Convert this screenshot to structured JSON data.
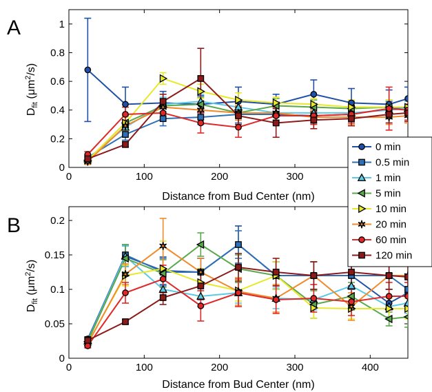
{
  "chart_data": [
    {
      "type": "line",
      "panel_label": "A",
      "xlabel": "Distance from Bud Center (nm)",
      "ylabel_main": "D",
      "ylabel_sub": "fit",
      "ylabel_unit_pre": "(μm",
      "ylabel_unit_sup": "2",
      "ylabel_unit_post": "/s)",
      "xlim": [
        0,
        450
      ],
      "ylim": [
        0,
        1.1
      ],
      "xticks": [
        0,
        100,
        200,
        300
      ],
      "yticks": [
        0,
        0.2,
        0.4,
        0.6,
        0.8,
        1
      ],
      "x": [
        25,
        75,
        125,
        175,
        225,
        275,
        325,
        375,
        425,
        450
      ],
      "series": [
        {
          "name": "0 min",
          "color": "#1f4fa8",
          "marker": "circle",
          "values": [
            0.68,
            0.44,
            0.45,
            0.44,
            0.46,
            0.44,
            0.51,
            0.45,
            0.44,
            0.48
          ],
          "errors": [
            0.36,
            0.12,
            0.08,
            0.06,
            0.1,
            0.07,
            0.1,
            0.1,
            0.1,
            0.08
          ]
        },
        {
          "name": "0.5 min",
          "color": "#2e6fb5",
          "marker": "square",
          "values": [
            0.07,
            0.23,
            0.34,
            0.35,
            0.37,
            0.37,
            0.36,
            0.37,
            0.41,
            0.42
          ],
          "errors": [
            0.02,
            0.04,
            0.05,
            0.05,
            0.06,
            0.05,
            0.05,
            0.05,
            0.05,
            0.05
          ]
        },
        {
          "name": "1 min",
          "color": "#5bc8e8",
          "marker": "triangle-up",
          "values": [
            0.06,
            0.28,
            0.44,
            0.46,
            0.42,
            0.38,
            0.38,
            0.38,
            0.4,
            0.41
          ],
          "errors": [
            0.02,
            0.05,
            0.05,
            0.05,
            0.05,
            0.05,
            0.05,
            0.05,
            0.05,
            0.05
          ]
        },
        {
          "name": "5 min",
          "color": "#5aa84a",
          "marker": "triangle-left",
          "values": [
            0.05,
            0.31,
            0.43,
            0.44,
            0.38,
            0.43,
            0.42,
            0.41,
            0.42,
            0.42
          ],
          "errors": [
            0.02,
            0.05,
            0.05,
            0.05,
            0.05,
            0.05,
            0.05,
            0.05,
            0.05,
            0.05
          ]
        },
        {
          "name": "10 min",
          "color": "#e8e82a",
          "marker": "triangle-right",
          "values": [
            0.05,
            0.31,
            0.62,
            0.53,
            0.47,
            0.45,
            0.44,
            0.42,
            0.42,
            0.42
          ],
          "errors": [
            0.02,
            0.04,
            0.04,
            0.05,
            0.05,
            0.04,
            0.04,
            0.05,
            0.05,
            0.05
          ]
        },
        {
          "name": "20 min",
          "color": "#f08a2a",
          "marker": "star",
          "values": [
            0.04,
            0.29,
            0.42,
            0.4,
            0.38,
            0.38,
            0.35,
            0.35,
            0.35,
            0.36
          ],
          "errors": [
            0.02,
            0.04,
            0.05,
            0.05,
            0.05,
            0.05,
            0.05,
            0.05,
            0.05,
            0.05
          ]
        },
        {
          "name": "60 min",
          "color": "#e02828",
          "marker": "circle",
          "values": [
            0.09,
            0.37,
            0.38,
            0.31,
            0.28,
            0.36,
            0.36,
            0.37,
            0.41,
            0.4
          ],
          "errors": [
            0.02,
            0.05,
            0.05,
            0.07,
            0.07,
            0.06,
            0.06,
            0.06,
            0.15,
            0.07
          ]
        },
        {
          "name": "120 min",
          "color": "#8c1a1a",
          "marker": "square",
          "values": [
            0.06,
            0.16,
            0.46,
            0.62,
            0.36,
            0.31,
            0.33,
            0.34,
            0.37,
            0.38
          ],
          "errors": [
            0.02,
            0.02,
            0.05,
            0.21,
            0.06,
            0.1,
            0.06,
            0.05,
            0.06,
            0.06
          ]
        }
      ],
      "legend": "right"
    },
    {
      "type": "line",
      "panel_label": "B",
      "xlabel": "Distance from Bud Center (nm)",
      "ylabel_main": "D",
      "ylabel_sub": "fit",
      "ylabel_unit_pre": "(μm",
      "ylabel_unit_sup": "2",
      "ylabel_unit_post": "/s)",
      "xlim": [
        0,
        450
      ],
      "ylim": [
        0,
        0.22
      ],
      "xticks": [
        0,
        100,
        200,
        300,
        400
      ],
      "yticks": [
        0,
        0.05,
        0.1,
        0.15,
        0.2
      ],
      "x": [
        25,
        75,
        125,
        175,
        225,
        275,
        325,
        375,
        425,
        450
      ],
      "series": [
        {
          "name": "0 min",
          "color": "#1f4fa8",
          "marker": "circle",
          "values": [
            0.028,
            0.148,
            0.127,
            0.125,
            0.165,
            0.12,
            0.12,
            0.12,
            0.08,
            0.095
          ],
          "errors": [
            0.003,
            0.015,
            0.02,
            0.02,
            0.027,
            0.02,
            0.02,
            0.02,
            0.02,
            0.02
          ]
        },
        {
          "name": "0.5 min",
          "color": "#2e6fb5",
          "marker": "square",
          "values": [
            0.027,
            0.15,
            0.125,
            0.125,
            0.165,
            0.12,
            0.12,
            0.12,
            0.12,
            0.1
          ],
          "errors": [
            0.003,
            0.015,
            0.02,
            0.02,
            0.02,
            0.02,
            0.02,
            0.02,
            0.02,
            0.02
          ]
        },
        {
          "name": "1 min",
          "color": "#5bc8e8",
          "marker": "triangle-up",
          "values": [
            0.025,
            0.148,
            0.1,
            0.09,
            0.095,
            0.087,
            0.085,
            0.105,
            0.075,
            0.08
          ],
          "errors": [
            0.003,
            0.015,
            0.015,
            0.015,
            0.015,
            0.015,
            0.015,
            0.015,
            0.015,
            0.015
          ]
        },
        {
          "name": "5 min",
          "color": "#5aa84a",
          "marker": "triangle-left",
          "values": [
            0.024,
            0.145,
            0.123,
            0.165,
            0.13,
            0.12,
            0.078,
            0.09,
            0.057,
            0.06
          ],
          "errors": [
            0.003,
            0.02,
            0.02,
            0.017,
            0.02,
            0.02,
            0.02,
            0.02,
            0.01,
            0.015
          ]
        },
        {
          "name": "10 min",
          "color": "#e8e82a",
          "marker": "triangle-right",
          "values": [
            0.022,
            0.12,
            0.13,
            0.11,
            0.098,
            0.12,
            0.073,
            0.072,
            0.072,
            0.072
          ],
          "errors": [
            0.003,
            0.015,
            0.04,
            0.02,
            0.015,
            0.02,
            0.015,
            0.015,
            0.015,
            0.015
          ]
        },
        {
          "name": "20 min",
          "color": "#f08a2a",
          "marker": "star",
          "values": [
            0.021,
            0.122,
            0.163,
            0.125,
            0.097,
            0.087,
            0.12,
            0.075,
            0.12,
            0.12
          ],
          "errors": [
            0.003,
            0.015,
            0.04,
            0.02,
            0.02,
            0.02,
            0.02,
            0.02,
            0.02,
            0.02
          ]
        },
        {
          "name": "60 min",
          "color": "#e02828",
          "marker": "circle",
          "values": [
            0.018,
            0.095,
            0.115,
            0.076,
            0.095,
            0.085,
            0.087,
            0.082,
            0.09,
            0.09
          ],
          "errors": [
            0.003,
            0.015,
            0.02,
            0.022,
            0.02,
            0.02,
            0.02,
            0.02,
            0.02,
            0.02
          ]
        },
        {
          "name": "120 min",
          "color": "#8c1a1a",
          "marker": "square",
          "values": [
            0.026,
            0.053,
            0.088,
            0.105,
            0.132,
            0.125,
            0.12,
            0.125,
            0.12,
            0.118
          ],
          "errors": [
            0.003,
            0.003,
            0.01,
            0.02,
            0.02,
            0.02,
            0.02,
            0.02,
            0.02,
            0.02
          ]
        }
      ],
      "legend": "none"
    }
  ]
}
